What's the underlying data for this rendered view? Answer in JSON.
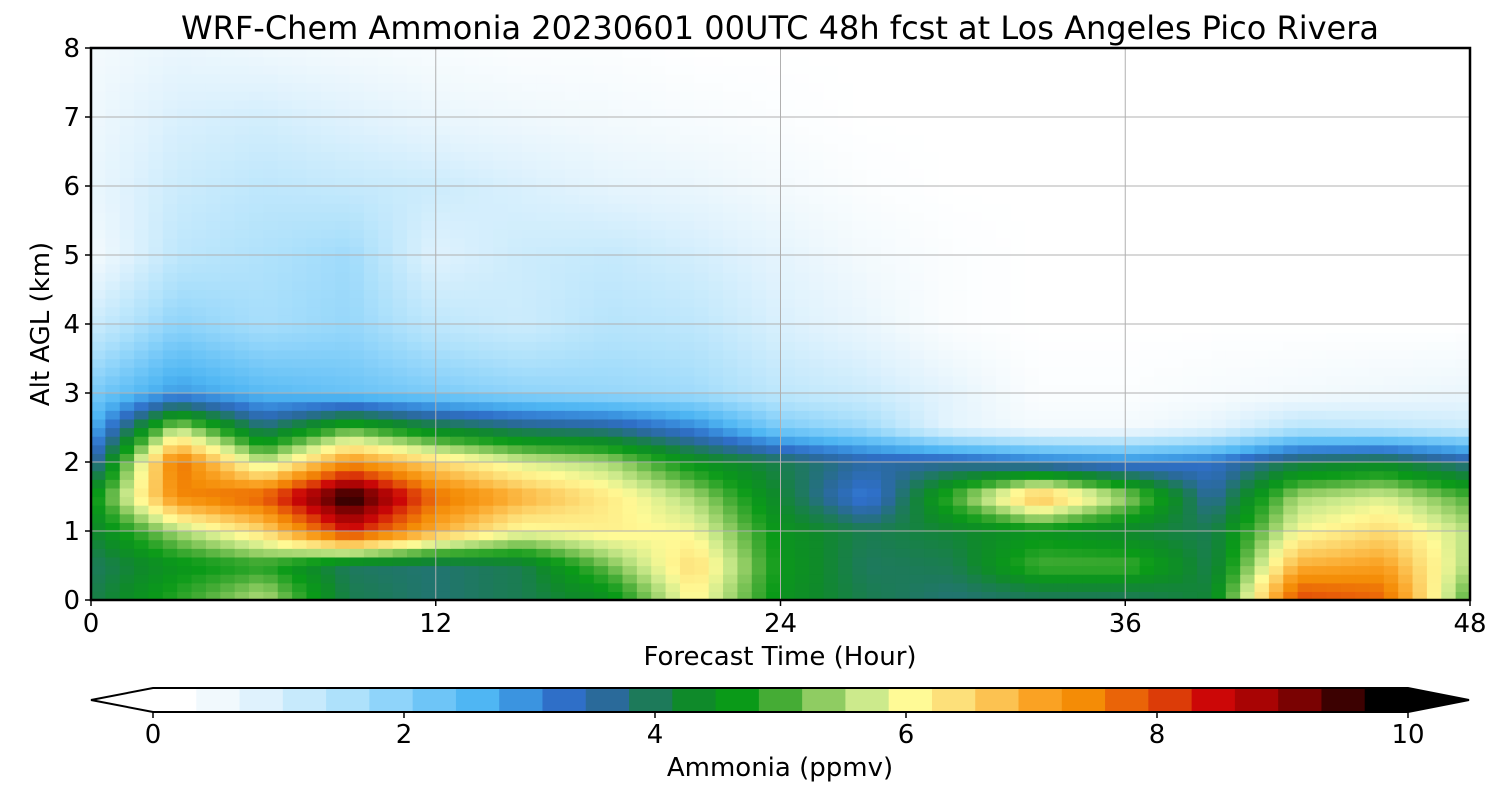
{
  "chart_data": {
    "type": "heatmap",
    "title": "WRF-Chem Ammonia  20230601 00UTC 48h fcst at Los Angeles Pico Rivera",
    "xlabel": "Forecast Time (Hour)",
    "ylabel": "Alt AGL (km)",
    "xlim": [
      0,
      48
    ],
    "ylim": [
      0,
      8
    ],
    "x_ticks": [
      "0",
      "12",
      "24",
      "36",
      "48"
    ],
    "y_ticks": [
      "0",
      "1",
      "2",
      "3",
      "4",
      "5",
      "6",
      "7",
      "8"
    ],
    "grid": true,
    "x": [
      0,
      3,
      6,
      9,
      12,
      15,
      18,
      21,
      24,
      27,
      30,
      33,
      36,
      39,
      42,
      45,
      48
    ],
    "y": [
      0.1,
      0.5,
      1.0,
      1.5,
      2.0,
      2.5,
      3.0,
      4.0,
      5.0,
      6.0,
      7.0,
      8.0
    ],
    "z": [
      [
        4.0,
        4.8,
        5.5,
        4.0,
        3.8,
        4.0,
        4.5,
        6.2,
        4.5,
        4.0,
        3.8,
        4.0,
        4.0,
        4.2,
        8.0,
        7.8,
        5.0
      ],
      [
        3.9,
        4.5,
        4.8,
        3.9,
        3.8,
        4.0,
        5.2,
        6.5,
        4.6,
        3.9,
        4.0,
        5.0,
        5.0,
        4.0,
        7.0,
        7.2,
        5.5
      ],
      [
        4.2,
        5.5,
        6.5,
        8.5,
        7.0,
        6.0,
        6.2,
        6.0,
        4.5,
        4.0,
        4.2,
        4.5,
        4.2,
        4.0,
        6.0,
        6.5,
        5.6
      ],
      [
        4.5,
        7.5,
        8.0,
        10.0,
        7.8,
        7.0,
        6.3,
        5.5,
        4.2,
        3.0,
        5.0,
        7.0,
        5.5,
        3.5,
        5.5,
        5.8,
        5.0
      ],
      [
        3.3,
        7.8,
        5.6,
        7.4,
        6.5,
        5.8,
        5.5,
        4.5,
        4.0,
        3.5,
        3.5,
        3.2,
        3.0,
        3.2,
        4.0,
        4.2,
        3.6
      ],
      [
        2.5,
        5.6,
        3.8,
        5.0,
        4.2,
        3.8,
        3.6,
        3.0,
        2.0,
        1.6,
        0.6,
        0.3,
        0.3,
        0.6,
        1.3,
        1.2,
        1.0
      ],
      [
        2.0,
        2.8,
        2.4,
        2.2,
        2.0,
        1.8,
        1.7,
        1.6,
        1.2,
        1.0,
        0.6,
        0.1,
        0.1,
        0.2,
        0.3,
        0.4,
        0.5
      ],
      [
        1.0,
        1.8,
        1.5,
        1.7,
        1.2,
        1.0,
        1.3,
        1.2,
        0.8,
        0.5,
        0.1,
        0.0,
        0.0,
        0.0,
        0.0,
        0.0,
        0.0
      ],
      [
        0.3,
        1.2,
        1.4,
        1.6,
        0.7,
        1.0,
        1.1,
        0.9,
        0.6,
        0.3,
        0.1,
        0.0,
        0.0,
        0.0,
        0.0,
        0.0,
        0.0
      ],
      [
        0.5,
        1.0,
        1.2,
        1.1,
        1.0,
        0.8,
        0.6,
        0.5,
        0.3,
        0.1,
        0.0,
        0.0,
        0.0,
        0.0,
        0.0,
        0.0,
        0.0
      ],
      [
        0.4,
        0.8,
        0.9,
        0.7,
        0.5,
        0.4,
        0.3,
        0.2,
        0.1,
        0.0,
        0.0,
        0.0,
        0.0,
        0.0,
        0.0,
        0.0,
        0.0
      ],
      [
        0.3,
        0.5,
        0.4,
        0.3,
        0.2,
        0.1,
        0.1,
        0.0,
        0.0,
        0.0,
        0.0,
        0.0,
        0.0,
        0.0,
        0.0,
        0.0,
        0.0
      ]
    ],
    "colorbar": {
      "label": "Ammonia  (ppmv)",
      "ticks": [
        "0",
        "2",
        "4",
        "6",
        "8",
        "10"
      ],
      "min": 0,
      "max": 10,
      "extend": "both",
      "colors": [
        "#ffffff",
        "#f1f9fd",
        "#dff2fd",
        "#c7eafc",
        "#aee1fb",
        "#8fd4fa",
        "#6ec5f7",
        "#4fb6f3",
        "#3b94e0",
        "#2f6fc8",
        "#2a6a9a",
        "#1d7a5a",
        "#0f8a2a",
        "#0a9a18",
        "#45ac35",
        "#8fcc62",
        "#ccea8c",
        "#fffa96",
        "#fde07a",
        "#fcc251",
        "#faa223",
        "#f48c06",
        "#ea6408",
        "#dc3c08",
        "#cc0707",
        "#a80404",
        "#7a0202",
        "#3c0101",
        "#000000"
      ]
    }
  }
}
